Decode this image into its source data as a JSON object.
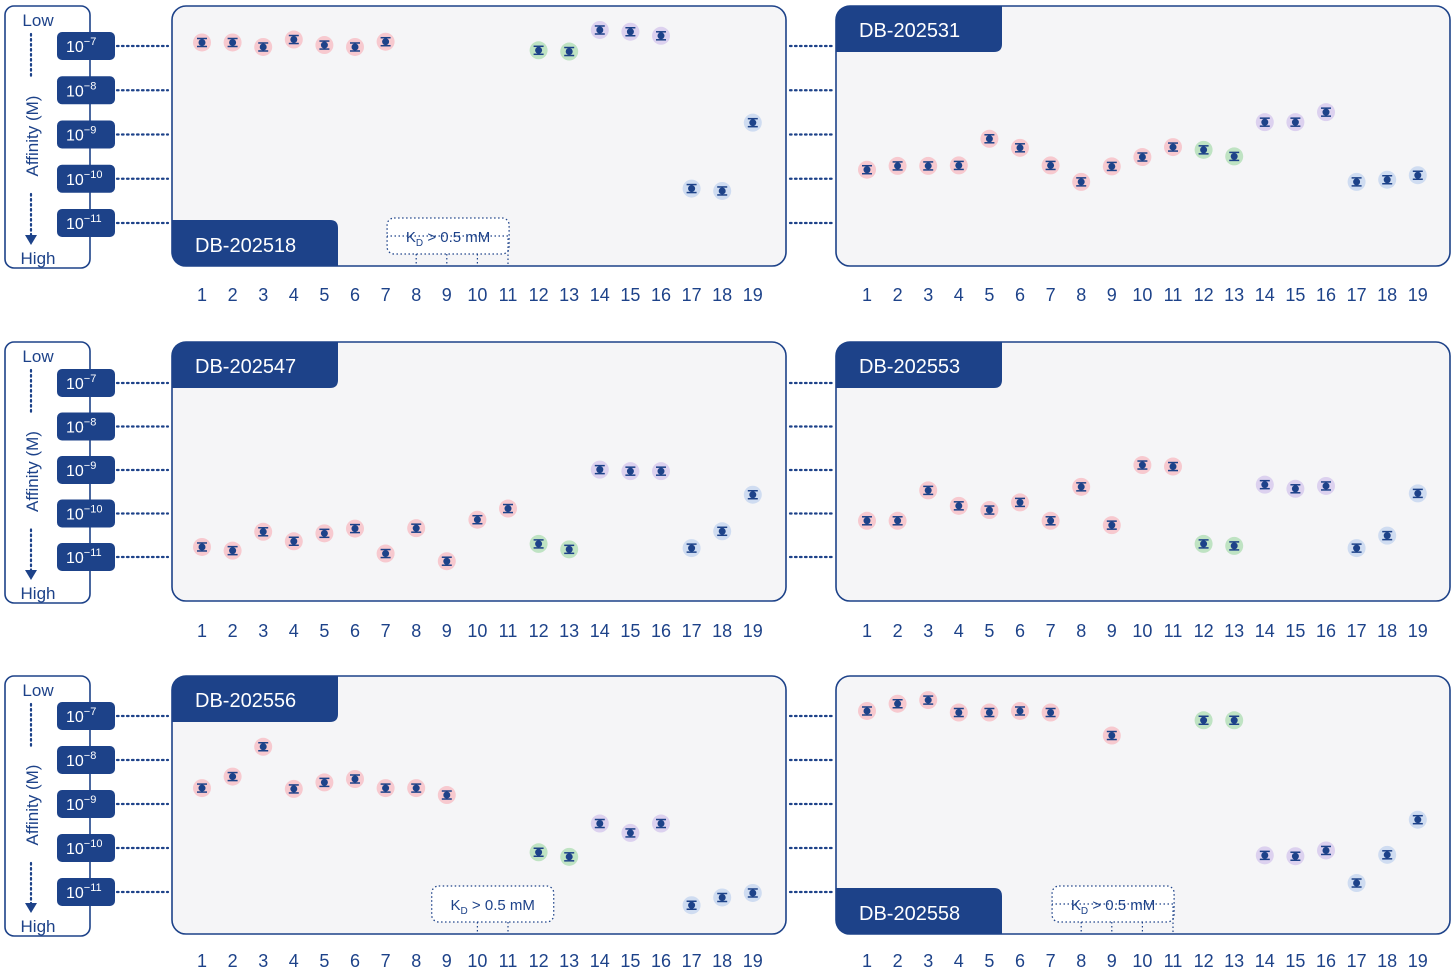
{
  "axis": {
    "title": "Affinity (M)",
    "low_label": "Low",
    "high_label": "High",
    "ticks": [
      {
        "mantissa": "10",
        "exponent": "−7",
        "log_kd": -7
      },
      {
        "mantissa": "10",
        "exponent": "−8",
        "log_kd": -8
      },
      {
        "mantissa": "10",
        "exponent": "−9",
        "log_kd": -9
      },
      {
        "mantissa": "10",
        "exponent": "−10",
        "log_kd": -10
      },
      {
        "mantissa": "10",
        "exponent": "−11",
        "log_kd": -11
      }
    ]
  },
  "colors": {
    "navy": "#1d4289",
    "panel_bg": "#f5f5f7",
    "pink": "#f7c9cf",
    "green": "#bfe3c3",
    "purple": "#dcd1ef",
    "blue": "#cfdcf1"
  },
  "nonbinder_note": {
    "prefix": "K",
    "subscript": "D",
    "suffix": " > 0.5 mM"
  },
  "chart_data": [
    {
      "type": "scatter",
      "title": "DB-202518",
      "x": [
        1,
        2,
        3,
        4,
        5,
        6,
        7,
        8,
        9,
        10,
        11,
        12,
        13,
        14,
        15,
        16,
        17,
        18,
        19
      ],
      "ylabel": "Affinity (M)",
      "y_scale": "log",
      "ylim": [
        1e-07,
        1e-11
      ],
      "points": [
        {
          "x": 1,
          "kd": 1.2e-07,
          "group": "pink"
        },
        {
          "x": 2,
          "kd": 1.2e-07,
          "group": "pink"
        },
        {
          "x": 3,
          "kd": 9.5e-08,
          "group": "pink"
        },
        {
          "x": 4,
          "kd": 1.4e-07,
          "group": "pink"
        },
        {
          "x": 5,
          "kd": 1.05e-07,
          "group": "pink"
        },
        {
          "x": 6,
          "kd": 9.5e-08,
          "group": "pink"
        },
        {
          "x": 7,
          "kd": 1.25e-07,
          "group": "pink"
        },
        {
          "x": 8,
          "kd": null
        },
        {
          "x": 9,
          "kd": null
        },
        {
          "x": 10,
          "kd": null
        },
        {
          "x": 11,
          "kd": null
        },
        {
          "x": 12,
          "kd": 8e-08,
          "group": "green"
        },
        {
          "x": 13,
          "kd": 7.5e-08,
          "group": "green"
        },
        {
          "x": 14,
          "kd": 2.3e-07,
          "group": "purple"
        },
        {
          "x": 15,
          "kd": 2.1e-07,
          "group": "purple"
        },
        {
          "x": 16,
          "kd": 1.7e-07,
          "group": "purple"
        },
        {
          "x": 17,
          "kd": 6e-11,
          "group": "blue"
        },
        {
          "x": 18,
          "kd": 5.3e-11,
          "group": "blue"
        },
        {
          "x": 19,
          "kd": 1.85e-09,
          "group": "blue"
        }
      ],
      "nonbinder_range": [
        8,
        11
      ]
    },
    {
      "type": "scatter",
      "title": "DB-202531",
      "x": [
        1,
        2,
        3,
        4,
        5,
        6,
        7,
        8,
        9,
        10,
        11,
        12,
        13,
        14,
        15,
        16,
        17,
        18,
        19
      ],
      "ylabel": "Affinity (M)",
      "y_scale": "log",
      "ylim": [
        1e-07,
        1e-11
      ],
      "points": [
        {
          "x": 1,
          "kd": 1.6e-10,
          "group": "pink"
        },
        {
          "x": 2,
          "kd": 1.95e-10,
          "group": "pink"
        },
        {
          "x": 3,
          "kd": 1.95e-10,
          "group": "pink"
        },
        {
          "x": 4,
          "kd": 2e-10,
          "group": "pink"
        },
        {
          "x": 5,
          "kd": 8e-10,
          "group": "pink"
        },
        {
          "x": 6,
          "kd": 5e-10,
          "group": "pink"
        },
        {
          "x": 7,
          "kd": 2e-10,
          "group": "pink"
        },
        {
          "x": 8,
          "kd": 8.5e-11,
          "group": "pink"
        },
        {
          "x": 9,
          "kd": 1.9e-10,
          "group": "pink"
        },
        {
          "x": 10,
          "kd": 3.1e-10,
          "group": "pink"
        },
        {
          "x": 11,
          "kd": 5.2e-10,
          "group": "pink"
        },
        {
          "x": 12,
          "kd": 4.5e-10,
          "group": "green"
        },
        {
          "x": 13,
          "kd": 3.2e-10,
          "group": "green"
        },
        {
          "x": 14,
          "kd": 1.9e-09,
          "group": "purple"
        },
        {
          "x": 15,
          "kd": 1.9e-09,
          "group": "purple"
        },
        {
          "x": 16,
          "kd": 3.2e-09,
          "group": "purple"
        },
        {
          "x": 17,
          "kd": 8.5e-11,
          "group": "blue"
        },
        {
          "x": 18,
          "kd": 9.5e-11,
          "group": "blue"
        },
        {
          "x": 19,
          "kd": 1.2e-10,
          "group": "blue"
        }
      ]
    },
    {
      "type": "scatter",
      "title": "DB-202547",
      "x": [
        1,
        2,
        3,
        4,
        5,
        6,
        7,
        8,
        9,
        10,
        11,
        12,
        13,
        14,
        15,
        16,
        17,
        18,
        19
      ],
      "ylabel": "Affinity (M)",
      "y_scale": "log",
      "ylim": [
        1e-07,
        1e-11
      ],
      "points": [
        {
          "x": 1,
          "kd": 1.7e-11,
          "group": "pink"
        },
        {
          "x": 2,
          "kd": 1.4e-11,
          "group": "pink"
        },
        {
          "x": 3,
          "kd": 3.8e-11,
          "group": "pink"
        },
        {
          "x": 4,
          "kd": 2.3e-11,
          "group": "pink"
        },
        {
          "x": 5,
          "kd": 3.5e-11,
          "group": "pink"
        },
        {
          "x": 6,
          "kd": 4.5e-11,
          "group": "pink"
        },
        {
          "x": 7,
          "kd": 1.2e-11,
          "group": "pink"
        },
        {
          "x": 8,
          "kd": 4.6e-11,
          "group": "pink"
        },
        {
          "x": 9,
          "kd": 8e-12,
          "group": "pink"
        },
        {
          "x": 10,
          "kd": 7.2e-11,
          "group": "pink"
        },
        {
          "x": 11,
          "kd": 1.3e-10,
          "group": "pink"
        },
        {
          "x": 12,
          "kd": 2e-11,
          "group": "green"
        },
        {
          "x": 13,
          "kd": 1.5e-11,
          "group": "green"
        },
        {
          "x": 14,
          "kd": 1.02e-09,
          "group": "purple"
        },
        {
          "x": 15,
          "kd": 9.4e-10,
          "group": "purple"
        },
        {
          "x": 16,
          "kd": 9.4e-10,
          "group": "purple"
        },
        {
          "x": 17,
          "kd": 1.6e-11,
          "group": "blue"
        },
        {
          "x": 18,
          "kd": 3.9e-11,
          "group": "blue"
        },
        {
          "x": 19,
          "kd": 2.7e-10,
          "group": "blue"
        }
      ]
    },
    {
      "type": "scatter",
      "title": "DB-202553",
      "x": [
        1,
        2,
        3,
        4,
        5,
        6,
        7,
        8,
        9,
        10,
        11,
        12,
        13,
        14,
        15,
        16,
        17,
        18,
        19
      ],
      "ylabel": "Affinity (M)",
      "y_scale": "log",
      "ylim": [
        1e-07,
        1e-11
      ],
      "points": [
        {
          "x": 1,
          "kd": 6.8e-11,
          "group": "pink"
        },
        {
          "x": 2,
          "kd": 6.8e-11,
          "group": "pink"
        },
        {
          "x": 3,
          "kd": 3.4e-10,
          "group": "pink"
        },
        {
          "x": 4,
          "kd": 1.5e-10,
          "group": "pink"
        },
        {
          "x": 5,
          "kd": 1.2e-10,
          "group": "pink"
        },
        {
          "x": 6,
          "kd": 1.8e-10,
          "group": "pink"
        },
        {
          "x": 7,
          "kd": 6.8e-11,
          "group": "pink"
        },
        {
          "x": 8,
          "kd": 4.1e-10,
          "group": "pink"
        },
        {
          "x": 9,
          "kd": 5.4e-11,
          "group": "pink"
        },
        {
          "x": 10,
          "kd": 1.3e-09,
          "group": "pink"
        },
        {
          "x": 11,
          "kd": 1.2e-09,
          "group": "pink"
        },
        {
          "x": 12,
          "kd": 2e-11,
          "group": "green"
        },
        {
          "x": 13,
          "kd": 1.8e-11,
          "group": "green"
        },
        {
          "x": 14,
          "kd": 4.6e-10,
          "group": "purple"
        },
        {
          "x": 15,
          "kd": 3.7e-10,
          "group": "purple"
        },
        {
          "x": 16,
          "kd": 4.3e-10,
          "group": "purple"
        },
        {
          "x": 17,
          "kd": 1.6e-11,
          "group": "blue"
        },
        {
          "x": 18,
          "kd": 3.1e-11,
          "group": "blue"
        },
        {
          "x": 19,
          "kd": 2.9e-10,
          "group": "blue"
        }
      ]
    },
    {
      "type": "scatter",
      "title": "DB-202556",
      "x": [
        1,
        2,
        3,
        4,
        5,
        6,
        7,
        8,
        9,
        10,
        11,
        12,
        13,
        14,
        15,
        16,
        17,
        18,
        19
      ],
      "ylabel": "Affinity (M)",
      "y_scale": "log",
      "ylim": [
        1e-07,
        1e-11
      ],
      "points": [
        {
          "x": 1,
          "kd": 2.3e-09,
          "group": "pink"
        },
        {
          "x": 2,
          "kd": 4.2e-09,
          "group": "pink"
        },
        {
          "x": 3,
          "kd": 2e-08,
          "group": "pink"
        },
        {
          "x": 4,
          "kd": 2.2e-09,
          "group": "pink"
        },
        {
          "x": 5,
          "kd": 3.1e-09,
          "group": "pink"
        },
        {
          "x": 6,
          "kd": 3.7e-09,
          "group": "pink"
        },
        {
          "x": 7,
          "kd": 2.3e-09,
          "group": "pink"
        },
        {
          "x": 8,
          "kd": 2.3e-09,
          "group": "pink"
        },
        {
          "x": 9,
          "kd": 1.6e-09,
          "group": "pink"
        },
        {
          "x": 10,
          "kd": null
        },
        {
          "x": 11,
          "kd": null
        },
        {
          "x": 12,
          "kd": 8e-11,
          "group": "green"
        },
        {
          "x": 13,
          "kd": 6.3e-11,
          "group": "green"
        },
        {
          "x": 14,
          "kd": 3.6e-10,
          "group": "purple"
        },
        {
          "x": 15,
          "kd": 2.2e-10,
          "group": "purple"
        },
        {
          "x": 16,
          "kd": 3.6e-10,
          "group": "purple"
        },
        {
          "x": 17,
          "kd": 5e-12,
          "group": "blue"
        },
        {
          "x": 18,
          "kd": 7.5e-12,
          "group": "blue"
        },
        {
          "x": 19,
          "kd": 9.5e-12,
          "group": "blue"
        }
      ],
      "nonbinder_range": [
        10,
        11
      ]
    },
    {
      "type": "scatter",
      "title": "DB-202558",
      "x": [
        1,
        2,
        3,
        4,
        5,
        6,
        7,
        8,
        9,
        10,
        11,
        12,
        13,
        14,
        15,
        16,
        17,
        18,
        19
      ],
      "ylabel": "Affinity (M)",
      "y_scale": "log",
      "ylim": [
        1e-07,
        1e-11
      ],
      "points": [
        {
          "x": 1,
          "kd": 1.3e-07,
          "group": "pink"
        },
        {
          "x": 2,
          "kd": 1.9e-07,
          "group": "pink"
        },
        {
          "x": 3,
          "kd": 2.3e-07,
          "group": "pink"
        },
        {
          "x": 4,
          "kd": 1.2e-07,
          "group": "pink"
        },
        {
          "x": 5,
          "kd": 1.2e-07,
          "group": "pink"
        },
        {
          "x": 6,
          "kd": 1.3e-07,
          "group": "pink"
        },
        {
          "x": 7,
          "kd": 1.2e-07,
          "group": "pink"
        },
        {
          "x": 8,
          "kd": null
        },
        {
          "x": 9,
          "kd": 3.6e-08,
          "group": "pink"
        },
        {
          "x": 10,
          "kd": null
        },
        {
          "x": 11,
          "kd": null
        },
        {
          "x": 12,
          "kd": 8e-08,
          "group": "green"
        },
        {
          "x": 13,
          "kd": 8e-08,
          "group": "green"
        },
        {
          "x": 14,
          "kd": 6.8e-11,
          "group": "purple"
        },
        {
          "x": 15,
          "kd": 6.5e-11,
          "group": "purple"
        },
        {
          "x": 16,
          "kd": 8.8e-11,
          "group": "purple"
        },
        {
          "x": 17,
          "kd": 1.6e-11,
          "group": "blue"
        },
        {
          "x": 18,
          "kd": 7e-11,
          "group": "blue"
        },
        {
          "x": 19,
          "kd": 4.4e-10,
          "group": "blue"
        }
      ],
      "nonbinder_range": [
        8,
        11
      ]
    }
  ]
}
